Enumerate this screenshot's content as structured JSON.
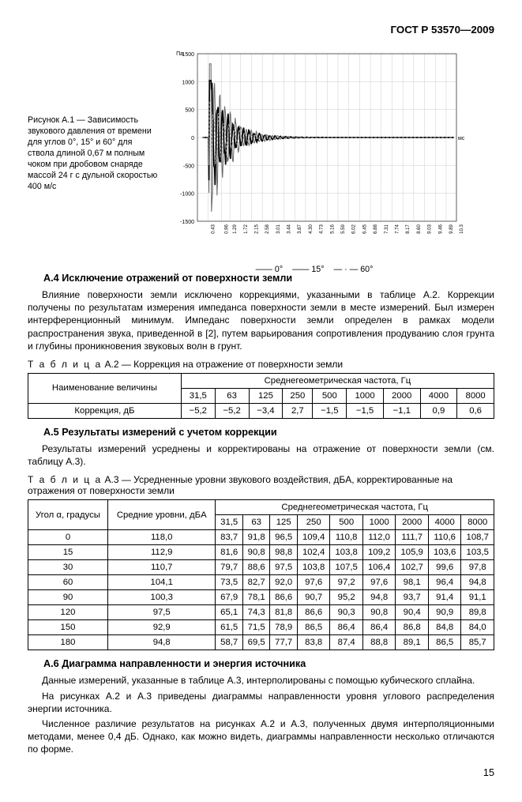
{
  "doc_ref": "ГОСТ Р 53570—2009",
  "figure_caption": "Рисунок А.1 — Зависимость звукового давления от времени для углов 0°, 15° и 60° для ствола длиной 0,67 м полным чоком при дробовом снаряде массой 24 г с дульной скоростью 400 м/с",
  "chart": {
    "type": "line",
    "y_unit": "Па",
    "y_ticks": [
      -1500,
      -1000,
      -500,
      0,
      500,
      1000,
      1500
    ],
    "x_unit": "мс",
    "x_ticks": [
      "0.43",
      "0.96",
      "1.29",
      "1.72",
      "2.15",
      "2.58",
      "3.01",
      "3.44",
      "3.87",
      "4.30",
      "4.73",
      "5.16",
      "5.59",
      "6.02",
      "6.45",
      "6.88",
      "7.31",
      "7.74",
      "8.17",
      "8.60",
      "9.03",
      "9.46",
      "9.89",
      "10.3"
    ],
    "legend": [
      "0°",
      "15°",
      "60°"
    ],
    "series": {
      "a0": {
        "color": "#666666",
        "width": 1
      },
      "a15": {
        "color": "#000000",
        "width": 1.7
      },
      "a60": {
        "color": "#999999",
        "width": 1,
        "dash": "3 2"
      }
    },
    "grid_color": "#cccccc"
  },
  "A4": {
    "title": "А.4  Исключение отражений от поверхности земли",
    "body": "Влияние поверхности земли исключено коррекциями, указанными в таблице А.2. Коррекции получены по результатам измерения импеданса поверхности земли в месте измерений. Был измерен интерференционный минимум. Импеданс поверхности земли определен в рамках модели распространения звука, приведенной в [2], путем варьирования сопротивления продуванию слоя грунта и глубины проникновения звуковых волн в грунт.",
    "table_title_a": "Т а б л и ц а",
    "table_title_b": "  А.2 — Коррекция на отражение от поверхности земли",
    "table": {
      "row_label_header": "Наименование величины",
      "group_header": "Среднегеометрическая частота, Гц",
      "freqs": [
        "31,5",
        "63",
        "125",
        "250",
        "500",
        "1000",
        "2000",
        "4000",
        "8000"
      ],
      "row_label": "Коррекция, дБ",
      "values": [
        "−5,2",
        "−5,2",
        "−3,4",
        "2,7",
        "−1,5",
        "−1,5",
        "−1,1",
        "0,9",
        "0,6"
      ]
    }
  },
  "A5": {
    "title": "А.5  Результаты измерений с учетом коррекции",
    "body": "Результаты измерений усреднены и корректированы на отражение от поверхности земли (см. таблицу А.3).",
    "table_title_a": "Т а б л и ц а",
    "table_title_b": "  А.3 — Усредненные уровни звукового воздействия, дБA, корректированные на отражения от поверхности земли",
    "table": {
      "c1": "Угол α, градусы",
      "c2": "Средние уровни, дБA",
      "group_header": "Среднегеометрическая частота, Гц",
      "freqs": [
        "31,5",
        "63",
        "125",
        "250",
        "500",
        "1000",
        "2000",
        "4000",
        "8000"
      ],
      "rows": [
        [
          "0",
          "118,0",
          "83,7",
          "91,8",
          "96,5",
          "109,4",
          "110,8",
          "112,0",
          "111,7",
          "110,6",
          "108,7"
        ],
        [
          "15",
          "112,9",
          "81,6",
          "90,8",
          "98,8",
          "102,4",
          "103,8",
          "109,2",
          "105,9",
          "103,6",
          "103,5"
        ],
        [
          "30",
          "110,7",
          "79,7",
          "88,6",
          "97,5",
          "103,8",
          "107,5",
          "106,4",
          "102,7",
          "99,6",
          "97,8"
        ],
        [
          "60",
          "104,1",
          "73,5",
          "82,7",
          "92,0",
          "97,6",
          "97,2",
          "97,6",
          "98,1",
          "96,4",
          "94,8"
        ],
        [
          "90",
          "100,3",
          "67,9",
          "78,1",
          "86,6",
          "90,7",
          "95,2",
          "94,8",
          "93,7",
          "91,4",
          "91,1"
        ],
        [
          "120",
          "97,5",
          "65,1",
          "74,3",
          "81,8",
          "86,6",
          "90,3",
          "90,8",
          "90,4",
          "90,9",
          "89,8"
        ],
        [
          "150",
          "92,9",
          "61,5",
          "71,5",
          "78,9",
          "86,5",
          "86,4",
          "86,4",
          "86,8",
          "84,8",
          "84,0"
        ],
        [
          "180",
          "94,8",
          "58,7",
          "69,5",
          "77,7",
          "83,8",
          "87,4",
          "88,8",
          "89,1",
          "86,5",
          "85,7"
        ]
      ]
    }
  },
  "A6": {
    "title": "А.6  Диаграмма направленности и энергия источника",
    "p1": "Данные измерений, указанные в таблице А.3, интерполированы с помощью кубического сплайна.",
    "p2": "На рисунках А.2 и А.3 приведены диаграммы направленности уровня углового распределения энергии источника.",
    "p3": "Численное различие результатов на рисунках А.2 и А.3, полученных двумя интерполяционными методами, менее 0,4 дБ. Однако, как можно видеть, диаграммы направленности несколько отличаются по форме."
  },
  "page": "15"
}
